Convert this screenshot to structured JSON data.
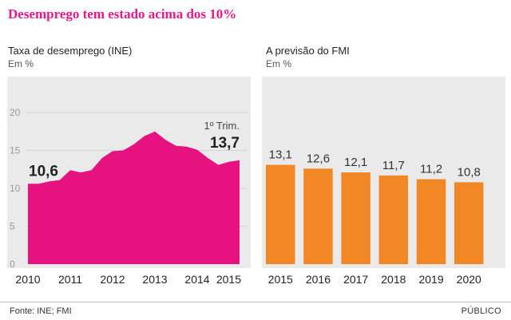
{
  "headline": "Desemprego tem estado acima dos 10%",
  "charts": [
    {
      "title": "Taxa de desemprego (INE)",
      "unit": "Em %",
      "type": "area",
      "color": "#e6127f",
      "yticks": [
        "0",
        "5",
        "10",
        "15",
        "20"
      ],
      "ylim": [
        0,
        22
      ],
      "xtick_labels": [
        "2010",
        "2011",
        "2012",
        "2013",
        "2014",
        "2015"
      ],
      "start_label": "10,6",
      "end_note": "1º Trim.",
      "end_label": "13,7",
      "chart_data": {
        "type": "area",
        "x": [
          2010.0,
          2010.25,
          2010.5,
          2010.75,
          2011.0,
          2011.25,
          2011.5,
          2011.75,
          2012.0,
          2012.25,
          2012.5,
          2012.75,
          2013.0,
          2013.25,
          2013.5,
          2013.75,
          2014.0,
          2014.25,
          2014.5,
          2014.75,
          2015.0
        ],
        "values": [
          10.6,
          10.6,
          10.9,
          11.1,
          12.4,
          12.1,
          12.4,
          14.0,
          14.9,
          15.0,
          15.8,
          16.9,
          17.5,
          16.4,
          15.6,
          15.5,
          15.1,
          14.0,
          13.1,
          13.5,
          13.7
        ],
        "ylim": [
          0,
          22
        ]
      }
    },
    {
      "title": "A previsão do FMI",
      "unit": "Em %",
      "type": "bar",
      "color": "#f28726",
      "chart_data": {
        "type": "bar",
        "categories": [
          "2015",
          "2016",
          "2017",
          "2018",
          "2019",
          "2020"
        ],
        "values": [
          13.1,
          12.6,
          12.1,
          11.7,
          11.2,
          10.8
        ],
        "value_labels": [
          "13,1",
          "12,6",
          "12,1",
          "11,7",
          "11,2",
          "10,8"
        ],
        "ylim": [
          0,
          22
        ]
      }
    }
  ],
  "footer": {
    "source": "Fonte: INE; FMI",
    "brand": "PÚBLICO"
  }
}
